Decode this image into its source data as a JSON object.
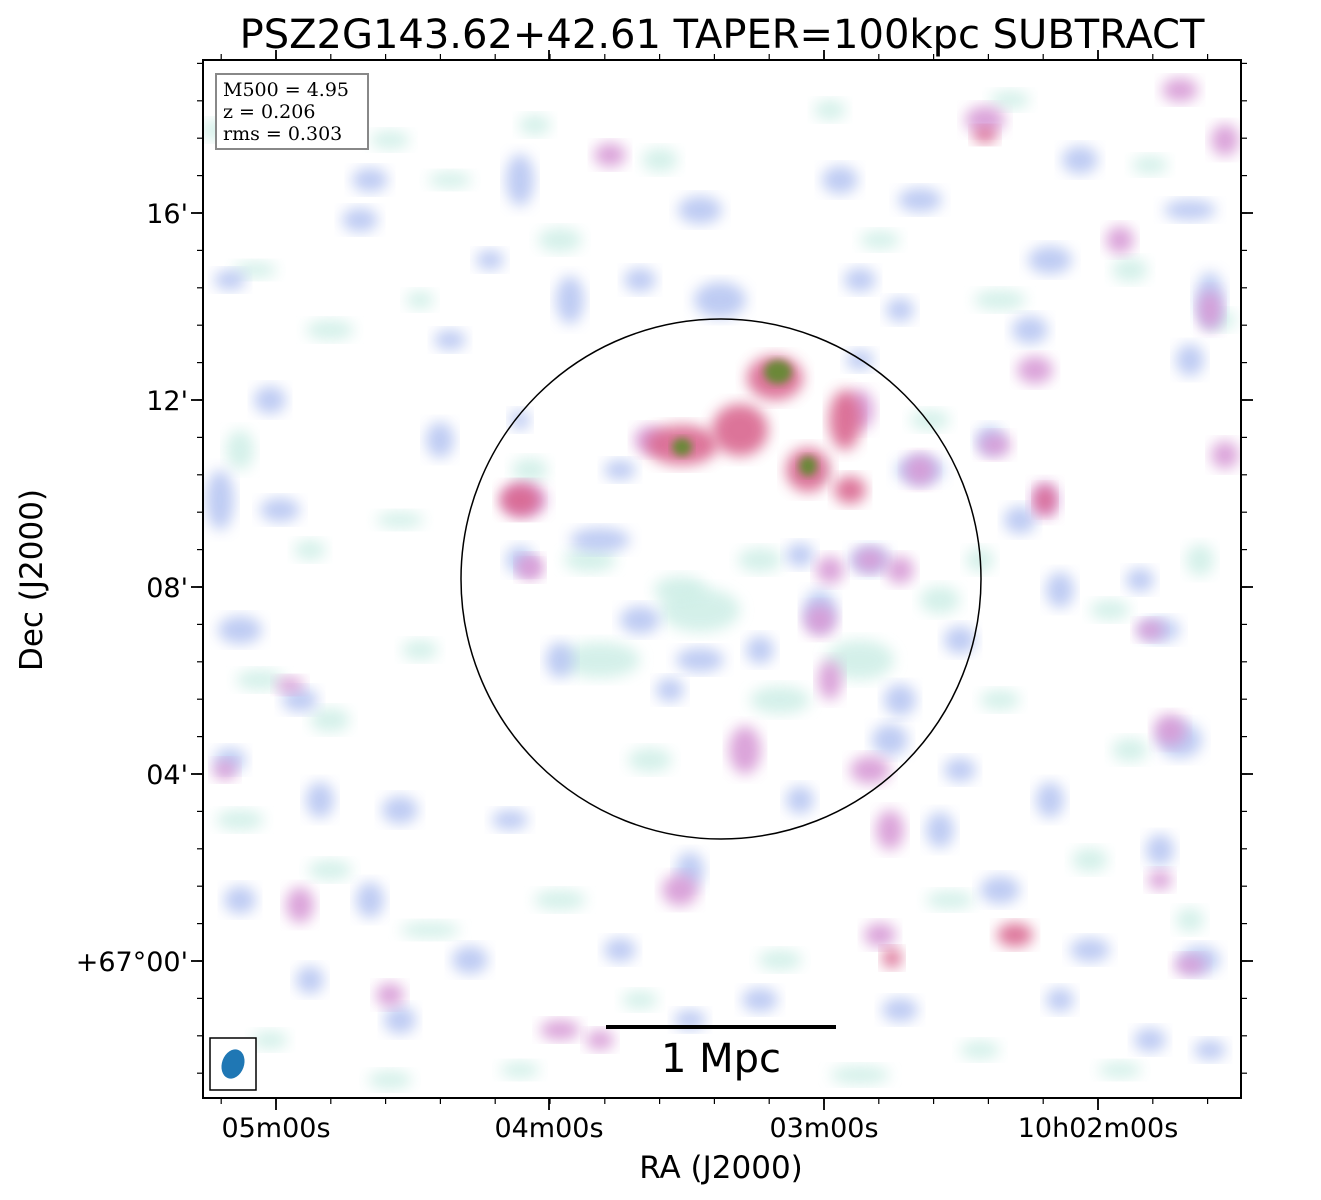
{
  "figure": {
    "title": "PSZ2G143.62+42.61 TAPER=100kpc SUBTRACT",
    "x_axis_label": "RA (J2000)",
    "y_axis_label": "Dec (J2000)",
    "x_tick_labels": [
      "05m00s",
      "04m00s",
      "03m00s",
      "10h02m00s"
    ],
    "y_tick_labels": [
      "16'",
      "12'",
      "08'",
      "04'",
      "+67°00'"
    ],
    "info_box": {
      "m500": "M500 = 4.95",
      "z": "z = 0.206",
      "rms": "rms = 0.303"
    },
    "scale_bar_label": "1 Mpc",
    "colors": {
      "faint": "#cdeee6",
      "low": "#b7c6f2",
      "mid": "#d79ad6",
      "high": "#d9668f",
      "peak": "#5f8a2f",
      "beam": "#1f77b4"
    }
  }
}
